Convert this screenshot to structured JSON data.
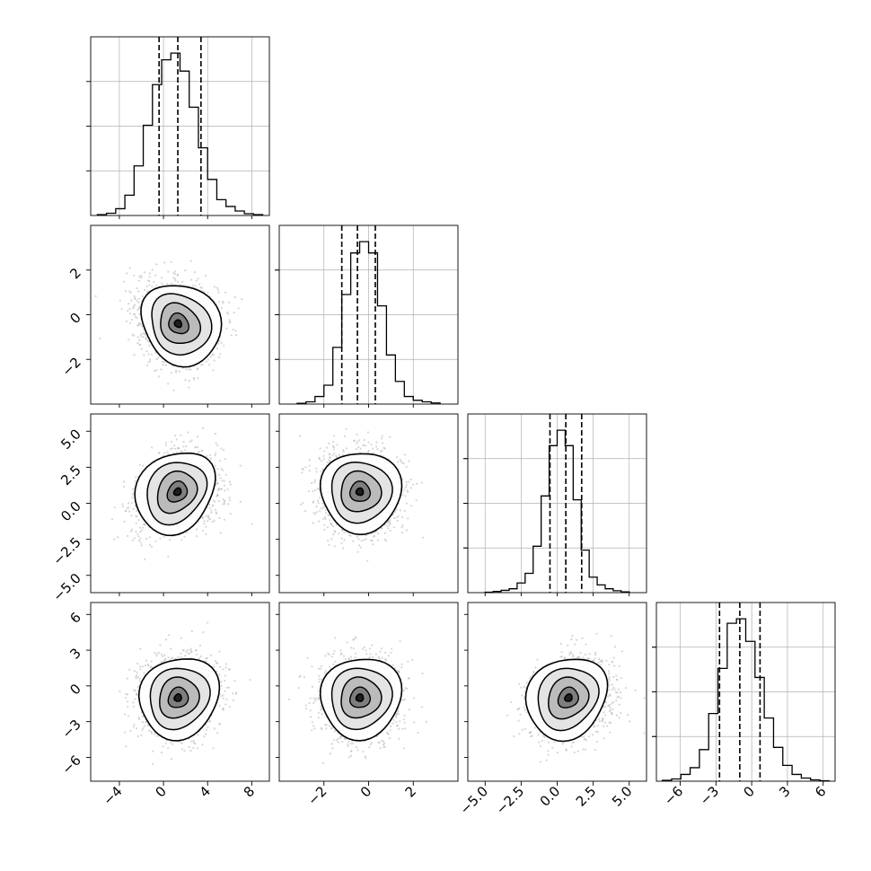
{
  "figure": {
    "colors": {
      "histogram": "#000000",
      "quantile": "#000000",
      "scatter": "#b4b4b4",
      "density_fill": "#555555",
      "contour": "#000000",
      "grid": "#b0b0b0"
    }
  },
  "chart_data": {
    "type": "corner",
    "title": "",
    "grid": true,
    "variables": [
      {
        "id": "p0",
        "range": [
          -6.6,
          9.6
        ],
        "ticks": [
          -4,
          0,
          4,
          8
        ],
        "tick_labels": [
          "−4",
          "0",
          "4",
          "8"
        ],
        "center": 1.3,
        "spread": 1.8,
        "quantiles": [
          -0.4,
          1.3,
          3.4
        ],
        "histogram": {
          "edges_range": [
            -6.0,
            9.0
          ],
          "counts": [
            2,
            5,
            15,
            45,
            110,
            200,
            290,
            345,
            360,
            320,
            240,
            150,
            80,
            35,
            20,
            10,
            4,
            2
          ]
        }
      },
      {
        "id": "p1",
        "range": [
          -4.0,
          4.0
        ],
        "ticks": [
          -2,
          0,
          2
        ],
        "tick_labels": [
          "−2",
          "0",
          "2"
        ],
        "center": -0.4,
        "spread": 0.9,
        "quantiles": [
          -1.2,
          -0.5,
          0.3
        ],
        "histogram": {
          "edges_range": [
            -3.2,
            3.2
          ],
          "counts": [
            2,
            6,
            20,
            50,
            150,
            290,
            400,
            430,
            400,
            260,
            130,
            60,
            20,
            10,
            6,
            3
          ]
        }
      },
      {
        "id": "p2",
        "range": [
          -6.2,
          6.2
        ],
        "ticks": [
          -5,
          -2.5,
          0,
          2.5,
          5
        ],
        "tick_labels": [
          "−5.0",
          "−2.5",
          "0.0",
          "2.5",
          "5.0"
        ],
        "center": 0.8,
        "spread": 1.4,
        "quantiles": [
          -0.5,
          0.6,
          1.7
        ],
        "histogram": {
          "edges_range": [
            -5.0,
            5.0
          ],
          "counts": [
            1,
            3,
            6,
            10,
            25,
            50,
            120,
            250,
            380,
            420,
            380,
            240,
            110,
            40,
            20,
            10,
            5,
            2
          ]
        }
      },
      {
        "id": "p3",
        "range": [
          -8.0,
          7.0
        ],
        "ticks": [
          -6,
          -3,
          0,
          3,
          6
        ],
        "tick_labels": [
          "−6",
          "−3",
          "0",
          "3",
          "6"
        ],
        "center": -1.0,
        "spread": 1.7,
        "quantiles": [
          -2.7,
          -1.0,
          0.7
        ],
        "histogram": {
          "edges_range": [
            -7.5,
            6.5
          ],
          "counts": [
            2,
            5,
            15,
            30,
            70,
            150,
            250,
            350,
            360,
            310,
            230,
            140,
            75,
            35,
            15,
            7,
            3,
            1
          ]
        }
      }
    ],
    "pairs": [
      {
        "x": "p0",
        "y": "p1",
        "correlation": -0.15,
        "skew": 0.25
      },
      {
        "x": "p0",
        "y": "p2",
        "correlation": 0.2,
        "skew": -0.2
      },
      {
        "x": "p1",
        "y": "p2",
        "correlation": 0.0,
        "skew": 0.1
      },
      {
        "x": "p0",
        "y": "p3",
        "correlation": 0.1,
        "skew": 0.1
      },
      {
        "x": "p1",
        "y": "p3",
        "correlation": 0.05,
        "skew": 0.1
      },
      {
        "x": "p2",
        "y": "p3",
        "correlation": 0.15,
        "skew": -0.15
      }
    ]
  }
}
